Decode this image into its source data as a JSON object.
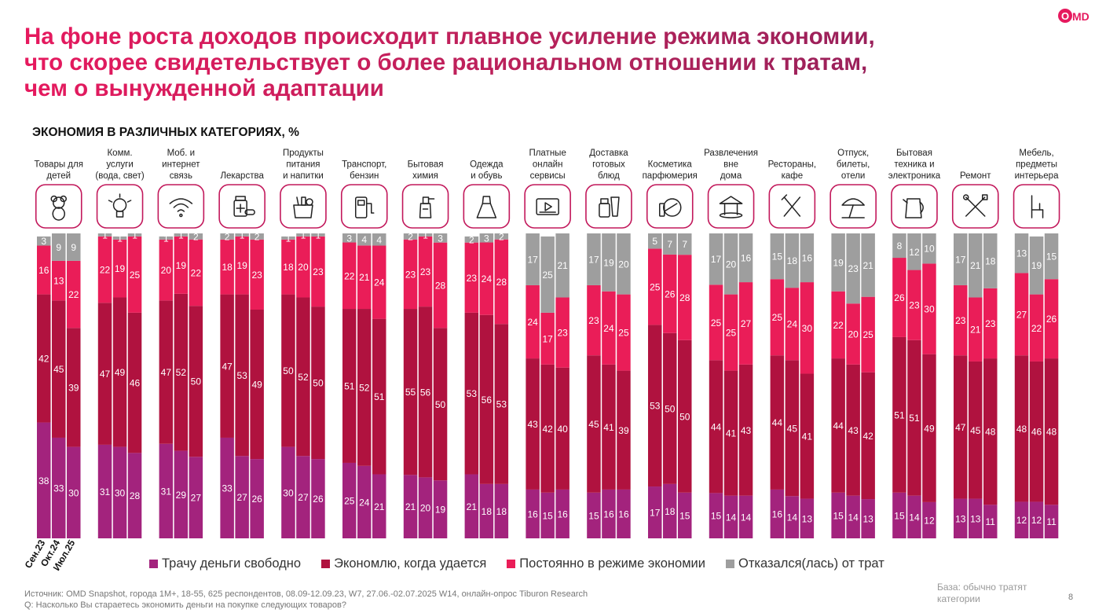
{
  "header": {
    "title_lines": [
      "На фоне роста доходов происходит плавное усиление режима экономии,",
      "что скорее свидетельствует о более рациональном отношении к тратам,",
      "чем о вынужденной адаптации"
    ],
    "logo": "OMD"
  },
  "chart_data": {
    "type": "bar",
    "stacked": true,
    "title": "ЭКОНОМИЯ В РАЗЛИЧНЫХ КАТЕГОРИЯХ, %",
    "periods": [
      "Сен.23",
      "Окт.24",
      "Июл.25"
    ],
    "ylim": [
      0,
      100
    ],
    "series": [
      {
        "name": "Трачу деньги свободно",
        "color": "#a3237d"
      },
      {
        "name": "Экономлю, когда удается",
        "color": "#b0123f"
      },
      {
        "name": "Постоянно в режиме экономии",
        "color": "#ea1d58"
      },
      {
        "name": "Отказался(лась) от трат",
        "color": "#9e9e9e"
      }
    ],
    "categories": [
      {
        "label": [
          "Товары для",
          "детей"
        ],
        "icon": "teddy-bear-icon",
        "values": [
          [
            38,
            42,
            16,
            3
          ],
          [
            33,
            45,
            13,
            9
          ],
          [
            30,
            39,
            22,
            9
          ]
        ]
      },
      {
        "label": [
          "Комм.",
          "услуги",
          "(вода, свет)"
        ],
        "icon": "light-bulb-icon",
        "values": [
          [
            31,
            47,
            22,
            1
          ],
          [
            30,
            49,
            19,
            1
          ],
          [
            28,
            46,
            25,
            1
          ]
        ]
      },
      {
        "label": [
          "Моб. и",
          "интернет",
          "связь"
        ],
        "icon": "wifi-icon",
        "values": [
          [
            31,
            47,
            20,
            1
          ],
          [
            29,
            52,
            19,
            1
          ],
          [
            27,
            50,
            22,
            2
          ]
        ]
      },
      {
        "label": [
          "Лекарства"
        ],
        "icon": "medicine-icon",
        "values": [
          [
            33,
            47,
            18,
            2
          ],
          [
            27,
            53,
            19,
            1
          ],
          [
            26,
            49,
            23,
            2
          ]
        ]
      },
      {
        "label": [
          "Продукты",
          "питания",
          "и напитки"
        ],
        "icon": "grocery-bag-icon",
        "values": [
          [
            30,
            50,
            18,
            1
          ],
          [
            27,
            52,
            20,
            1
          ],
          [
            26,
            50,
            23,
            1
          ]
        ]
      },
      {
        "label": [
          "Транспорт,",
          "бензин"
        ],
        "icon": "fuel-pump-icon",
        "values": [
          [
            25,
            51,
            22,
            3
          ],
          [
            24,
            52,
            21,
            4
          ],
          [
            21,
            51,
            24,
            4
          ]
        ]
      },
      {
        "label": [
          "Бытовая",
          "химия"
        ],
        "icon": "spray-bottle-icon",
        "values": [
          [
            21,
            55,
            23,
            2
          ],
          [
            20,
            56,
            23,
            1
          ],
          [
            19,
            50,
            28,
            3
          ]
        ]
      },
      {
        "label": [
          "Одежда",
          "и обувь"
        ],
        "icon": "dress-icon",
        "values": [
          [
            21,
            53,
            23,
            2
          ],
          [
            18,
            56,
            24,
            3
          ],
          [
            18,
            53,
            28,
            2
          ]
        ]
      },
      {
        "label": [
          "Платные",
          "онлайн",
          "сервисы"
        ],
        "icon": "video-player-icon",
        "values": [
          [
            16,
            43,
            24,
            17
          ],
          [
            15,
            42,
            17,
            25
          ],
          [
            16,
            40,
            23,
            21
          ]
        ]
      },
      {
        "label": [
          "Доставка",
          "готовых",
          "блюд"
        ],
        "icon": "food-delivery-icon",
        "values": [
          [
            15,
            45,
            23,
            17
          ],
          [
            16,
            41,
            24,
            19
          ],
          [
            16,
            39,
            25,
            20
          ]
        ]
      },
      {
        "label": [
          "Косметика",
          "парфюмерия"
        ],
        "icon": "cosmetics-icon",
        "values": [
          [
            17,
            53,
            25,
            5
          ],
          [
            18,
            50,
            26,
            7
          ],
          [
            15,
            50,
            28,
            7
          ]
        ]
      },
      {
        "label": [
          "Развлечения",
          "вне",
          "дома"
        ],
        "icon": "carousel-icon",
        "values": [
          [
            15,
            44,
            25,
            17
          ],
          [
            14,
            41,
            25,
            20
          ],
          [
            14,
            43,
            27,
            16
          ]
        ]
      },
      {
        "label": [
          "Рестораны,",
          "кафе"
        ],
        "icon": "fork-knife-icon",
        "values": [
          [
            16,
            44,
            25,
            15
          ],
          [
            14,
            45,
            24,
            18
          ],
          [
            13,
            41,
            30,
            16
          ]
        ]
      },
      {
        "label": [
          "Отпуск,",
          "билеты,",
          "отели"
        ],
        "icon": "beach-umbrella-icon",
        "values": [
          [
            15,
            44,
            22,
            19
          ],
          [
            14,
            43,
            20,
            23
          ],
          [
            13,
            42,
            25,
            21
          ]
        ]
      },
      {
        "label": [
          "Бытовая",
          "техника и",
          "электроника"
        ],
        "icon": "kettle-icon",
        "values": [
          [
            15,
            51,
            26,
            8
          ],
          [
            14,
            51,
            23,
            12
          ],
          [
            12,
            49,
            30,
            10
          ]
        ]
      },
      {
        "label": [
          "Ремонт"
        ],
        "icon": "tools-icon",
        "values": [
          [
            13,
            47,
            23,
            17
          ],
          [
            13,
            45,
            21,
            21
          ],
          [
            11,
            48,
            23,
            18
          ]
        ]
      },
      {
        "label": [
          "Мебель,",
          "предметы",
          "интерьера"
        ],
        "icon": "chair-icon",
        "values": [
          [
            12,
            48,
            27,
            13
          ],
          [
            12,
            46,
            22,
            19
          ],
          [
            11,
            48,
            26,
            15
          ]
        ]
      }
    ]
  },
  "footer": {
    "source": "Источник: OMD Snapshot, города 1М+, 18-55, 625 респондентов, 08.09-12.09.23, W7, 27.06.-02.07.2025 W14, онлайн-опрос Tiburon Research",
    "question": "Q: Насколько Вы стараетесь экономить деньги на покупке следующих товаров?",
    "base": "База: обычно тратят категории",
    "page": "8"
  }
}
